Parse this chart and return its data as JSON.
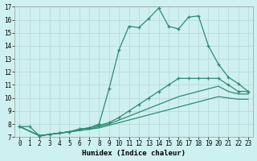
{
  "xlabel": "Humidex (Indice chaleur)",
  "bg_color": "#cff0f0",
  "grid_color": "#b8dada",
  "line_color": "#2d8b72",
  "xlim": [
    -0.5,
    23.5
  ],
  "ylim": [
    7,
    17
  ],
  "yticks": [
    7,
    8,
    9,
    10,
    11,
    12,
    13,
    14,
    15,
    16,
    17
  ],
  "xticks": [
    0,
    1,
    2,
    3,
    4,
    5,
    6,
    7,
    8,
    9,
    10,
    11,
    12,
    13,
    14,
    15,
    16,
    17,
    18,
    19,
    20,
    21,
    22,
    23
  ],
  "line1_x": [
    0,
    1,
    2,
    3,
    4,
    5,
    6,
    7,
    8,
    9,
    10,
    11,
    12,
    13,
    14,
    15,
    16,
    17,
    18,
    19,
    20,
    21,
    22,
    23
  ],
  "line1_y": [
    7.8,
    7.8,
    7.1,
    7.2,
    7.3,
    7.4,
    7.6,
    7.7,
    8.0,
    10.7,
    13.7,
    15.5,
    15.4,
    16.1,
    16.9,
    15.5,
    15.3,
    16.2,
    16.3,
    14.0,
    12.6,
    11.6,
    11.1,
    10.5
  ],
  "line2_x": [
    0,
    2,
    3,
    4,
    5,
    6,
    7,
    8,
    9,
    10,
    11,
    12,
    13,
    14,
    15,
    16,
    17,
    18,
    19,
    20,
    21,
    22,
    23
  ],
  "line2_y": [
    7.8,
    7.1,
    7.2,
    7.3,
    7.4,
    7.6,
    7.7,
    7.9,
    8.1,
    8.5,
    9.0,
    9.5,
    10.0,
    10.5,
    11.0,
    11.5,
    11.5,
    11.5,
    11.5,
    11.5,
    11.0,
    10.5,
    10.5
  ],
  "line3_x": [
    0,
    2,
    3,
    4,
    5,
    6,
    7,
    8,
    9,
    10,
    11,
    12,
    13,
    14,
    15,
    16,
    17,
    18,
    19,
    20,
    21,
    22,
    23
  ],
  "line3_y": [
    7.8,
    7.1,
    7.2,
    7.3,
    7.4,
    7.5,
    7.6,
    7.8,
    8.0,
    8.3,
    8.6,
    8.9,
    9.2,
    9.5,
    9.8,
    10.1,
    10.3,
    10.5,
    10.7,
    10.9,
    10.5,
    10.3,
    10.3
  ],
  "line4_x": [
    0,
    2,
    3,
    4,
    5,
    6,
    7,
    8,
    9,
    10,
    11,
    12,
    13,
    14,
    15,
    16,
    17,
    18,
    19,
    20,
    21,
    22,
    23
  ],
  "line4_y": [
    7.8,
    7.1,
    7.2,
    7.3,
    7.4,
    7.5,
    7.6,
    7.7,
    7.9,
    8.1,
    8.3,
    8.5,
    8.7,
    8.9,
    9.1,
    9.3,
    9.5,
    9.7,
    9.9,
    10.1,
    10.0,
    9.9,
    9.9
  ]
}
